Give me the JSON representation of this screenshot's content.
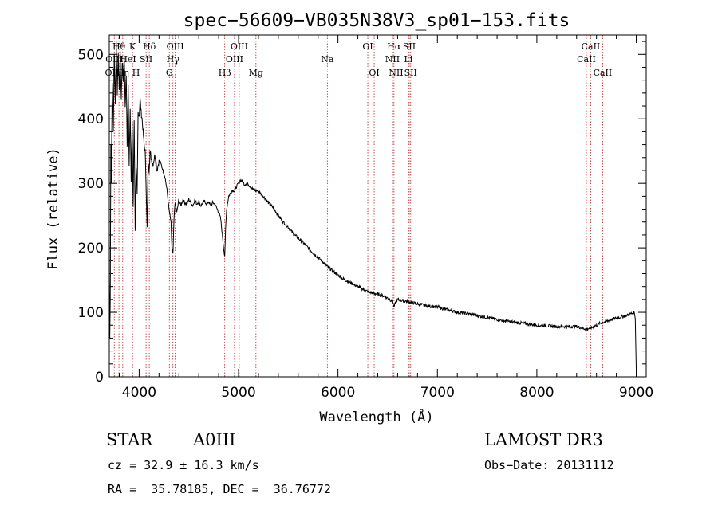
{
  "chart_data": {
    "type": "line",
    "title": "spec−56609−VB035N38V3_sp01−153.fits",
    "xlabel": "Wavelength (Å)",
    "ylabel": "Flux (relative)",
    "xlim": [
      3700,
      9100
    ],
    "ylim": [
      0,
      530
    ],
    "xticks": [
      4000,
      5000,
      6000,
      7000,
      8000,
      9000
    ],
    "yticks": [
      0,
      100,
      200,
      300,
      400,
      500
    ],
    "series": [
      {
        "name": "flux",
        "x": [
          3700,
          3705,
          3710,
          3715,
          3720,
          3730,
          3740,
          3750,
          3760,
          3770,
          3780,
          3790,
          3800,
          3810,
          3820,
          3830,
          3840,
          3850,
          3860,
          3870,
          3880,
          3890,
          3900,
          3910,
          3920,
          3930,
          3940,
          3950,
          3960,
          3970,
          3980,
          3990,
          4000,
          4010,
          4020,
          4030,
          4040,
          4050,
          4060,
          4070,
          4080,
          4090,
          4100,
          4110,
          4120,
          4140,
          4160,
          4180,
          4200,
          4220,
          4240,
          4260,
          4280,
          4300,
          4320,
          4330,
          4340,
          4350,
          4360,
          4380,
          4400,
          4420,
          4440,
          4460,
          4480,
          4500,
          4520,
          4540,
          4560,
          4580,
          4600,
          4620,
          4640,
          4660,
          4680,
          4700,
          4720,
          4740,
          4760,
          4780,
          4800,
          4820,
          4840,
          4850,
          4861,
          4870,
          4880,
          4900,
          4920,
          4940,
          4960,
          4980,
          5000,
          5020,
          5040,
          5060,
          5080,
          5100,
          5150,
          5200,
          5250,
          5300,
          5350,
          5400,
          5450,
          5500,
          5550,
          5600,
          5650,
          5700,
          5750,
          5800,
          5850,
          5900,
          5950,
          6000,
          6050,
          6100,
          6150,
          6200,
          6250,
          6300,
          6350,
          6400,
          6450,
          6500,
          6540,
          6563,
          6580,
          6600,
          6650,
          6700,
          6750,
          6800,
          6900,
          7000,
          7100,
          7200,
          7300,
          7400,
          7500,
          7600,
          7700,
          7800,
          7900,
          8000,
          8100,
          8200,
          8300,
          8400,
          8450,
          8500,
          8550,
          8600,
          8650,
          8700,
          8750,
          8800,
          8850,
          8900,
          8950,
          8980,
          8990,
          9000
        ],
        "y": [
          155,
          60,
          120,
          360,
          300,
          460,
          380,
          500,
          420,
          520,
          440,
          505,
          440,
          500,
          430,
          490,
          460,
          500,
          420,
          470,
          360,
          450,
          330,
          420,
          300,
          395,
          260,
          400,
          230,
          320,
          280,
          410,
          405,
          430,
          410,
          400,
          380,
          360,
          350,
          300,
          230,
          330,
          320,
          350,
          340,
          330,
          345,
          320,
          335,
          330,
          320,
          310,
          290,
          260,
          240,
          200,
          190,
          240,
          270,
          255,
          275,
          265,
          275,
          270,
          268,
          275,
          270,
          265,
          275,
          268,
          272,
          265,
          270,
          272,
          268,
          272,
          265,
          270,
          268,
          262,
          255,
          245,
          215,
          200,
          185,
          230,
          260,
          280,
          285,
          290,
          288,
          295,
          300,
          305,
          303,
          298,
          300,
          298,
          290,
          288,
          280,
          270,
          262,
          250,
          240,
          232,
          222,
          215,
          208,
          200,
          192,
          185,
          178,
          170,
          164,
          158,
          152,
          148,
          144,
          140,
          136,
          132,
          130,
          128,
          126,
          122,
          118,
          108,
          115,
          120,
          118,
          117,
          115,
          113,
          110,
          108,
          104,
          100,
          98,
          95,
          92,
          89,
          86,
          84,
          82,
          80,
          79,
          78,
          78,
          78,
          76,
          74,
          76,
          80,
          84,
          86,
          89,
          91,
          93,
          95,
          98,
          100,
          90,
          12
        ]
      }
    ],
    "spectral_lines": [
      {
        "label": "OII",
        "x": 3727,
        "row": 3
      },
      {
        "label": "Hθ",
        "x": 3797,
        "row": 1
      },
      {
        "label": "OIII",
        "x": 3750,
        "row": 2
      },
      {
        "label": "K",
        "x": 3934,
        "row": 1
      },
      {
        "label": "H",
        "x": 3969,
        "row": 3
      },
      {
        "label": "HeI",
        "x": 3889,
        "row": 2
      },
      {
        "label": "SII",
        "x": 4070,
        "row": 2
      },
      {
        "label": "Hδ",
        "x": 4102,
        "row": 1
      },
      {
        "label": "Hη",
        "x": 3835,
        "row": 3
      },
      {
        "label": "OIII",
        "x": 4363,
        "row": 1
      },
      {
        "label": "Hγ",
        "x": 4340,
        "row": 2
      },
      {
        "label": "G",
        "x": 4304,
        "row": 3
      },
      {
        "label": "Hβ",
        "x": 4861,
        "row": 3
      },
      {
        "label": "OIII",
        "x": 5007,
        "row": 1
      },
      {
        "label": "OIII",
        "x": 4959,
        "row": 2
      },
      {
        "label": "Mg",
        "x": 5175,
        "row": 3
      },
      {
        "label": "Na",
        "x": 5893,
        "row": 2
      },
      {
        "label": "OI",
        "x": 6300,
        "row": 1
      },
      {
        "label": "OI",
        "x": 6364,
        "row": 3
      },
      {
        "label": "Hα",
        "x": 6563,
        "row": 1
      },
      {
        "label": "NII",
        "x": 6548,
        "row": 2
      },
      {
        "label": "NII",
        "x": 6584,
        "row": 3
      },
      {
        "label": "SII",
        "x": 6717,
        "row": 1
      },
      {
        "label": "Li",
        "x": 6708,
        "row": 2
      },
      {
        "label": "SII",
        "x": 6731,
        "row": 3
      },
      {
        "label": "CaII",
        "x": 8542,
        "row": 1
      },
      {
        "label": "CaII",
        "x": 8498,
        "row": 2
      },
      {
        "label": "CaII",
        "x": 8662,
        "row": 3
      }
    ]
  },
  "info": {
    "object_class": "STAR",
    "subclass": "A0III",
    "survey": "LAMOST DR3",
    "cz": "cz = 32.9 ± 16.3 km/s",
    "obs_date": "Obs−Date: 20131112",
    "coords": "RA =  35.78185, DEC =  36.76772"
  }
}
